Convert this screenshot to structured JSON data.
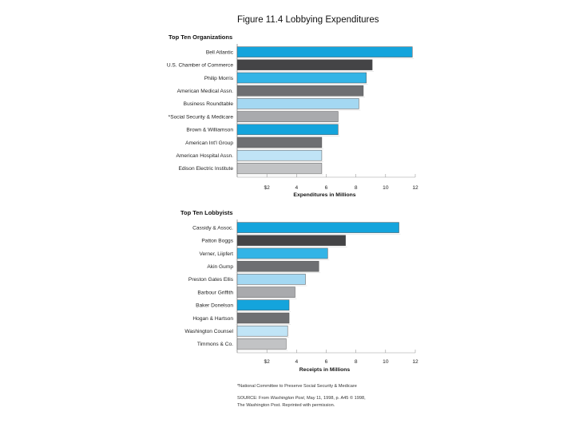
{
  "figure_title": "Figure 11.4 Lobbying Expenditures",
  "footnote": "*National Committee to Preserve Social Security & Medicare",
  "source": {
    "prefix": "SOURCE: From ",
    "publication": "Washington Post",
    "rest": ", May 11, 1998, p. A45 © 1998,",
    "line2": "The Washington Post. Reprinted with permission."
  },
  "colors": {
    "bright_blue": "#14a4dc",
    "dark_gray": "#444446",
    "mid_blue": "#33b4e6",
    "gray": "#6e6f72",
    "light_blue": "#a4d8f2",
    "light_gray": "#a9aaad",
    "pale_blue": "#c0e4f6",
    "pale_gray": "#c2c3c5"
  },
  "chart_data": [
    {
      "type": "bar",
      "orientation": "horizontal",
      "title": "Top Ten Organizations",
      "xlabel": "Expenditures in Millions",
      "xlim": [
        0,
        12
      ],
      "ticks": [
        {
          "value": 2,
          "label": "$2"
        },
        {
          "value": 4,
          "label": "4"
        },
        {
          "value": 6,
          "label": "6"
        },
        {
          "value": 8,
          "label": "8"
        },
        {
          "value": 10,
          "label": "10"
        },
        {
          "value": 12,
          "label": "12"
        }
      ],
      "categories": [
        "Bell Atlantic",
        "U.S. Chamber of Commerce",
        "Philip Morris",
        "American Medical Assn.",
        "Business Roundtable",
        "*Social Security & Medicare",
        "Brown & Williamson",
        "American Int'l Group",
        "American Hospital Assn.",
        "Edison Electric Institute"
      ],
      "values": [
        11.8,
        9.1,
        8.7,
        8.5,
        8.2,
        6.8,
        6.8,
        5.7,
        5.7,
        5.7
      ],
      "bar_colors": [
        "bright_blue",
        "dark_gray",
        "mid_blue",
        "gray",
        "light_blue",
        "light_gray",
        "bright_blue",
        "gray",
        "pale_blue",
        "pale_gray"
      ]
    },
    {
      "type": "bar",
      "orientation": "horizontal",
      "title": "Top Ten Lobbyists",
      "xlabel": "Receipts in Millions",
      "xlim": [
        0,
        12
      ],
      "ticks": [
        {
          "value": 2,
          "label": "$2"
        },
        {
          "value": 4,
          "label": "4"
        },
        {
          "value": 6,
          "label": "6"
        },
        {
          "value": 8,
          "label": "8"
        },
        {
          "value": 10,
          "label": "10"
        },
        {
          "value": 12,
          "label": "12"
        }
      ],
      "categories": [
        "Cassidy & Assoc.",
        "Patton Boggs",
        "Verner, Liipfert",
        "Akin Gump",
        "Preston Gates Ellis",
        "Barbour Griffith",
        "Baker Donelson",
        "Hogan & Hartson",
        "Washington Counsel",
        "Timmons & Co."
      ],
      "values": [
        10.9,
        7.3,
        6.1,
        5.5,
        4.6,
        3.9,
        3.5,
        3.5,
        3.4,
        3.3
      ],
      "bar_colors": [
        "bright_blue",
        "dark_gray",
        "mid_blue",
        "gray",
        "light_blue",
        "light_gray",
        "bright_blue",
        "gray",
        "pale_blue",
        "pale_gray"
      ]
    }
  ]
}
